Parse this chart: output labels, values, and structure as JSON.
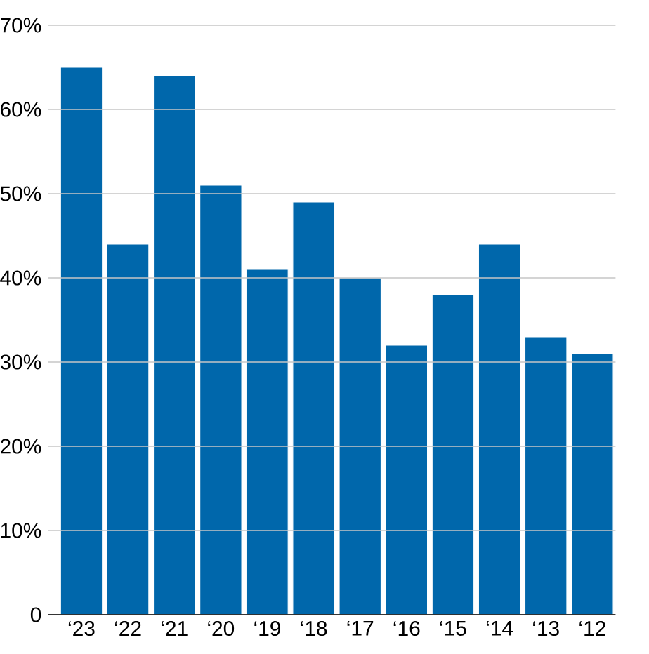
{
  "chart_data": {
    "type": "bar",
    "categories": [
      "‘23",
      "‘22",
      "‘21",
      "‘20",
      "‘19",
      "‘18",
      "‘17",
      "‘16",
      "‘15",
      "‘14",
      "‘13",
      "‘12"
    ],
    "values": [
      65,
      44,
      64,
      51,
      41,
      49,
      40,
      32,
      38,
      44,
      33,
      31
    ],
    "color": "#0067ab",
    "ylim": [
      0,
      70
    ],
    "yticks": [
      0,
      {
        "value": 10,
        "label": "10%"
      },
      {
        "value": 20,
        "label": "20%"
      },
      {
        "value": 30,
        "label": "30%"
      },
      {
        "value": 40,
        "label": "40%"
      },
      {
        "value": 50,
        "label": "50%"
      },
      {
        "value": 60,
        "label": "60%"
      },
      {
        "value": 70,
        "label": "70%"
      }
    ],
    "grid": "y"
  }
}
